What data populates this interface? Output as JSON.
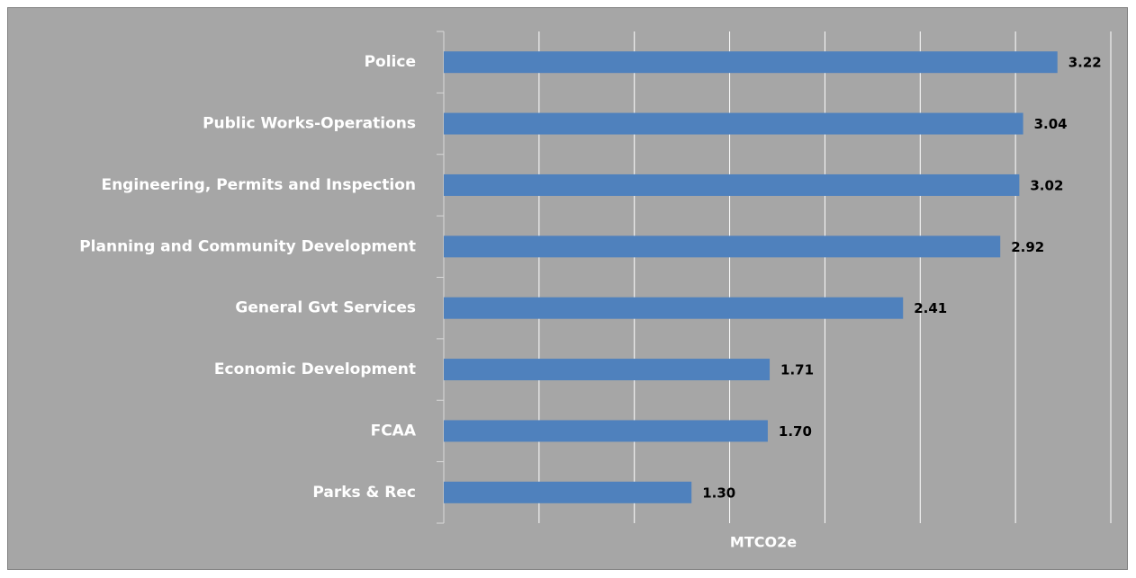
{
  "chart_data": {
    "type": "bar",
    "orientation": "horizontal",
    "categories": [
      "Police",
      "Public Works-Operations",
      "Engineering, Permits and Inspection",
      "Planning and Community Development",
      "General Gvt Services",
      "Economic Development",
      "FCAA",
      "Parks & Rec"
    ],
    "values": [
      3.22,
      3.04,
      3.02,
      2.92,
      2.41,
      1.71,
      1.7,
      1.3
    ],
    "value_labels": [
      "3.22",
      "3.04",
      "3.02",
      "2.92",
      "2.41",
      "1.71",
      "1.70",
      "1.30"
    ],
    "color": "#4f81bd",
    "xlabel": "MTCO2e",
    "xlim": [
      0,
      3.5
    ],
    "xticks": [
      0,
      0.5,
      1,
      1.5,
      2,
      2.5,
      3,
      3.5
    ],
    "grid": true
  }
}
